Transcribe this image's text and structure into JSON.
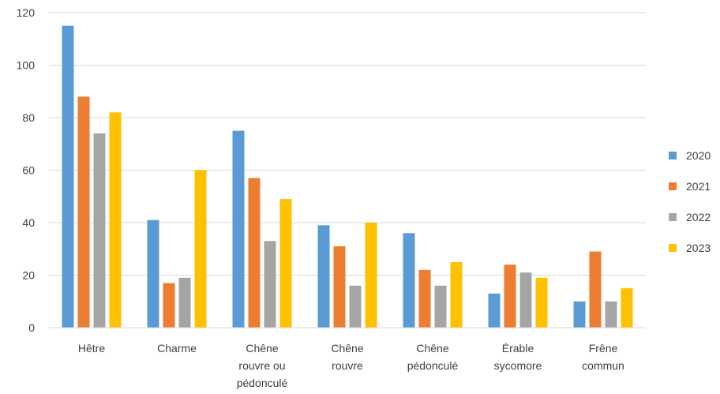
{
  "chart_data": {
    "type": "bar",
    "categories": [
      [
        "Hêtre"
      ],
      [
        "Charme"
      ],
      [
        "Chêne",
        "rouvre ou",
        "pédonculé"
      ],
      [
        "Chêne",
        "rouvre"
      ],
      [
        "Chêne",
        "pédonculé"
      ],
      [
        "Érable",
        "sycomore"
      ],
      [
        "Frêne",
        "commun"
      ]
    ],
    "series": [
      {
        "name": "2020",
        "color": "#5B9BD5",
        "values": [
          115,
          41,
          75,
          39,
          36,
          13,
          10
        ]
      },
      {
        "name": "2021",
        "color": "#ED7D31",
        "values": [
          88,
          17,
          57,
          31,
          22,
          24,
          29
        ]
      },
      {
        "name": "2022",
        "color": "#A5A5A5",
        "values": [
          74,
          19,
          33,
          16,
          16,
          21,
          10
        ]
      },
      {
        "name": "2023",
        "color": "#FFC000",
        "values": [
          82,
          60,
          49,
          40,
          25,
          19,
          15
        ]
      }
    ],
    "ylim": [
      0,
      120
    ],
    "yticks": [
      0,
      20,
      40,
      60,
      80,
      100,
      120
    ],
    "grid": true,
    "legend_position": "right",
    "title": "",
    "xlabel": "",
    "ylabel": ""
  }
}
